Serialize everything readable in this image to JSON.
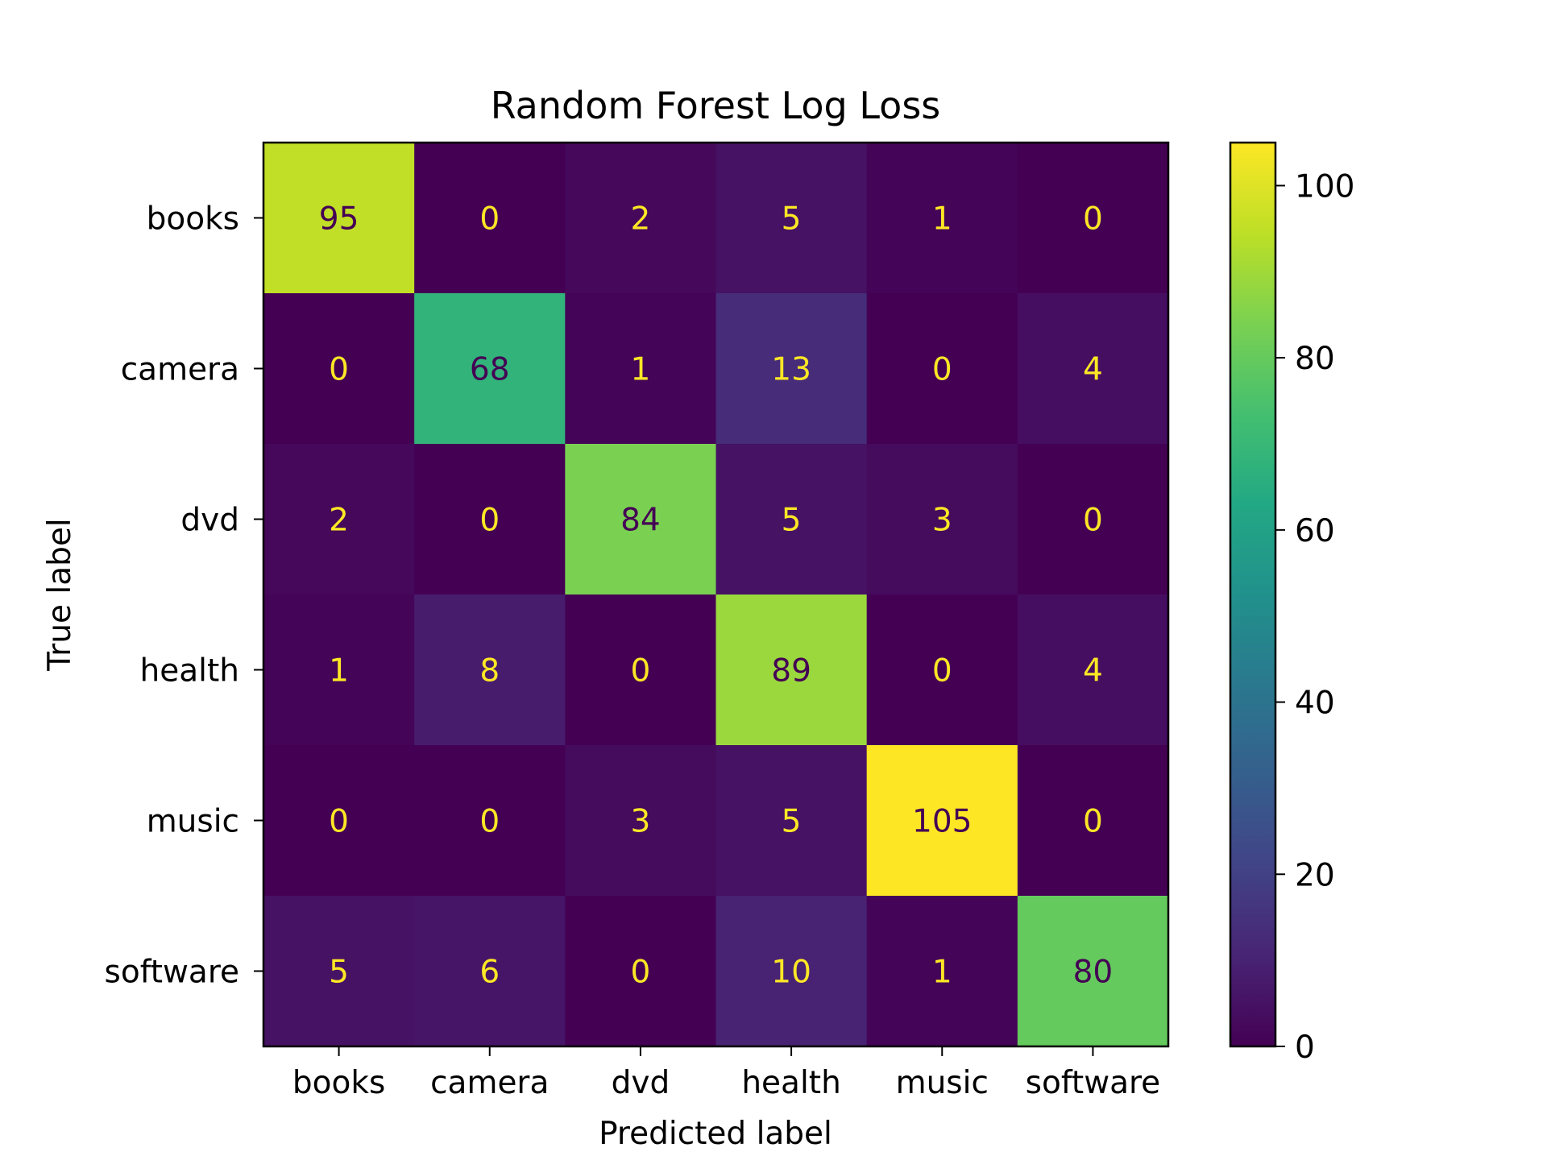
{
  "chart_data": {
    "type": "heatmap",
    "title": "Random Forest Log Loss",
    "xlabel": "Predicted label",
    "ylabel": "True label",
    "x_categories": [
      "books",
      "camera",
      "dvd",
      "health",
      "music",
      "software"
    ],
    "y_categories": [
      "books",
      "camera",
      "dvd",
      "health",
      "music",
      "software"
    ],
    "values": [
      [
        95,
        0,
        2,
        5,
        1,
        0
      ],
      [
        0,
        68,
        1,
        13,
        0,
        4
      ],
      [
        2,
        0,
        84,
        5,
        3,
        0
      ],
      [
        1,
        8,
        0,
        89,
        0,
        4
      ],
      [
        0,
        0,
        3,
        5,
        105,
        0
      ],
      [
        5,
        6,
        0,
        10,
        1,
        80
      ]
    ],
    "colormap": "viridis",
    "colorbar": {
      "range": [
        0,
        105
      ],
      "ticks": [
        0,
        20,
        40,
        60,
        80,
        100
      ]
    },
    "grid": false
  }
}
